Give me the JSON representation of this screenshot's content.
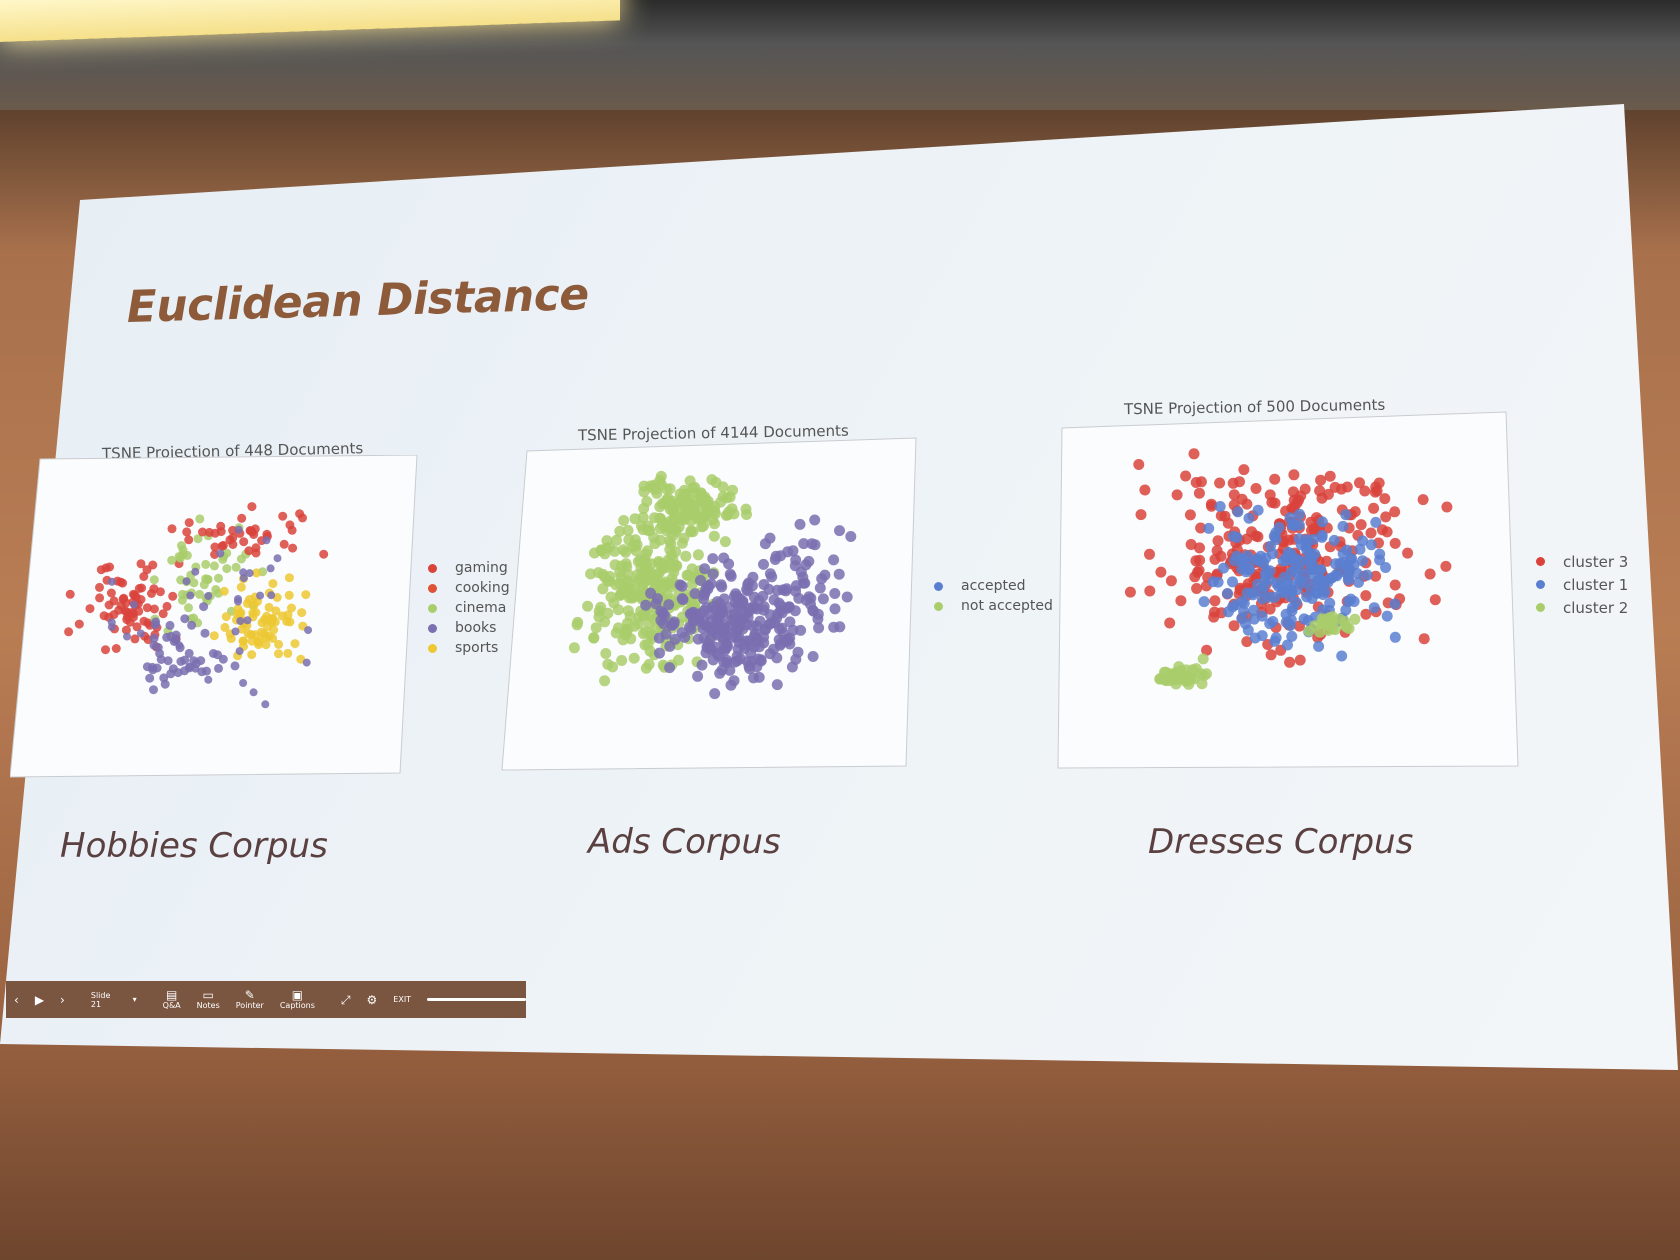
{
  "slide": {
    "title": "Euclidean Distance",
    "colors": {
      "red": "#d9433c",
      "orange": "#e8573a",
      "green": "#a9cd6b",
      "purple": "#7a6fb0",
      "blue": "#5b7fd0",
      "yellow": "#ecc832"
    }
  },
  "plots": [
    {
      "title": "TSNE Projection of 448 Documents",
      "corpus": "Hobbies Corpus",
      "legend": [
        {
          "label": "gaming",
          "color": "#d9433c"
        },
        {
          "label": "cooking",
          "color": "#e05235"
        },
        {
          "label": "cinema",
          "color": "#a9cd6b"
        },
        {
          "label": "books",
          "color": "#7a6fb0"
        },
        {
          "label": "sports",
          "color": "#ecc832"
        }
      ]
    },
    {
      "title": "TSNE Projection of 4144 Documents",
      "corpus": "Ads Corpus",
      "legend": [
        {
          "label": "accepted",
          "color": "#5b7fd0"
        },
        {
          "label": "not accepted",
          "color": "#a9cd6b"
        }
      ]
    },
    {
      "title": "TSNE Projection of 500 Documents",
      "corpus": "Dresses Corpus",
      "legend": [
        {
          "label": "cluster 3",
          "color": "#d9433c"
        },
        {
          "label": "cluster 1",
          "color": "#5b7fd0"
        },
        {
          "label": "cluster 2",
          "color": "#a9cd6b"
        }
      ]
    }
  ],
  "toolbar": {
    "slide_label": "Slide 21",
    "qa": "Q&A",
    "notes": "Notes",
    "pointer": "Pointer",
    "captions": "Captions",
    "exit": "EXIT"
  }
}
